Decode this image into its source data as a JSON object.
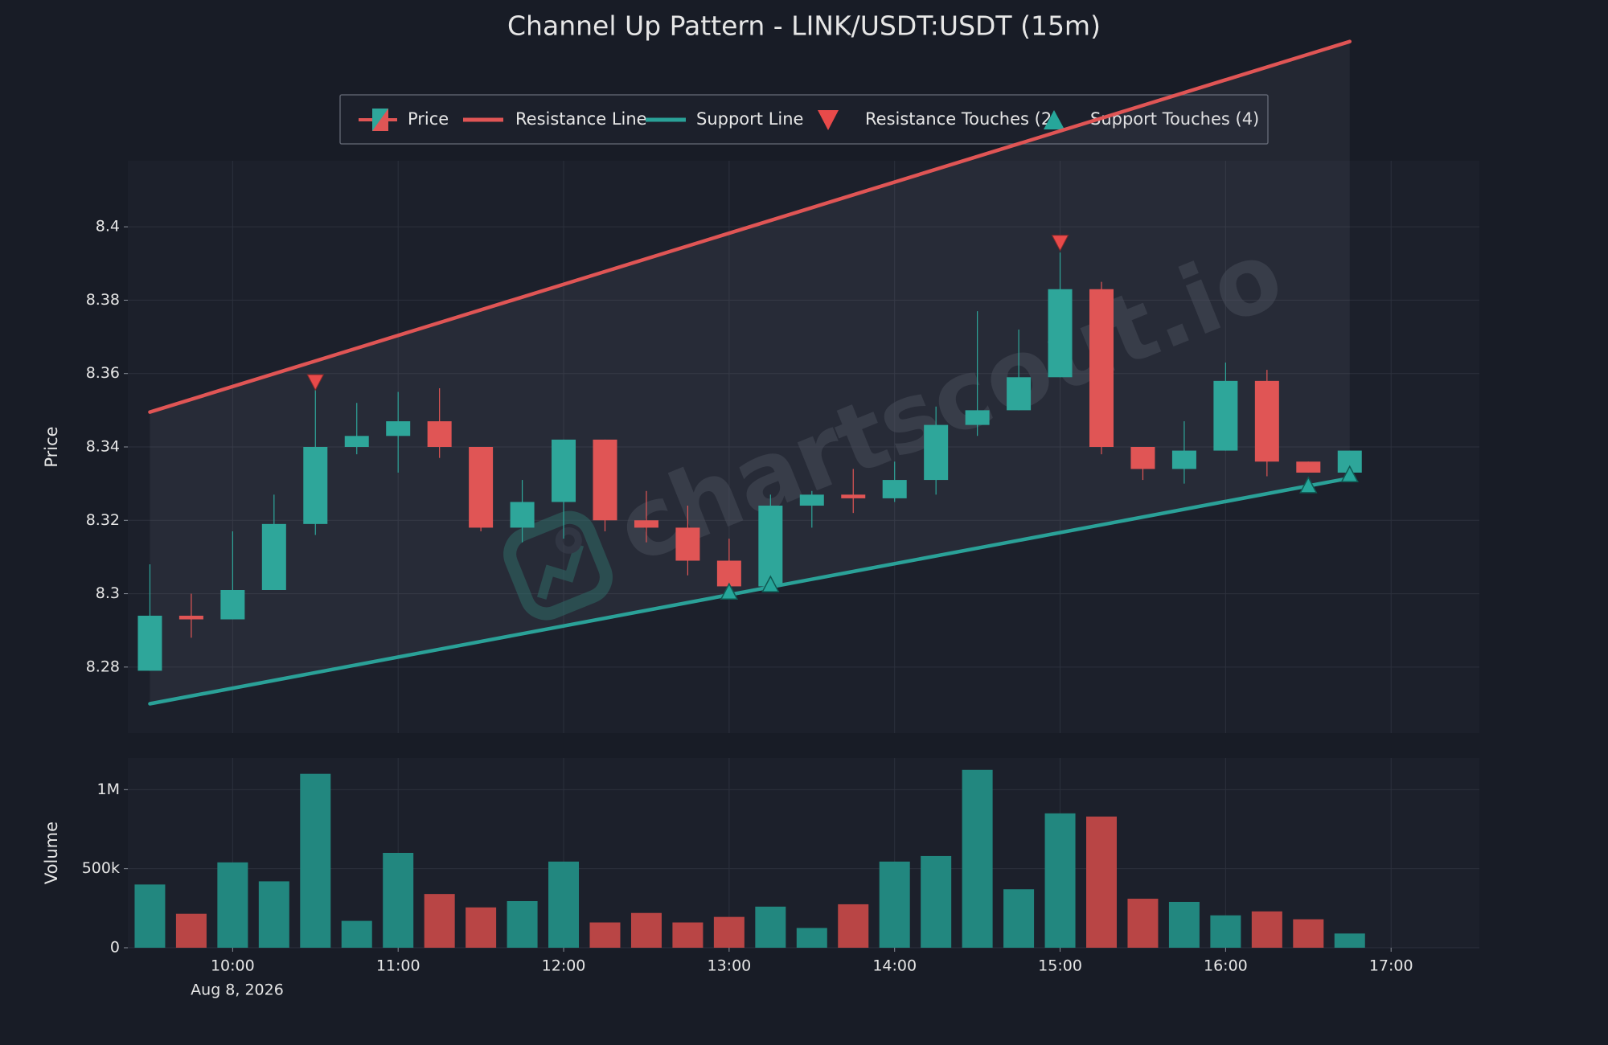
{
  "chart_data": {
    "type": "candlestick",
    "title": "Channel Up Pattern - LINK/USDT:USDT (15m)",
    "watermark": "chartscout.io",
    "legend": {
      "placement": "top-center",
      "items": [
        {
          "label": "Price",
          "icon": "candle-icon"
        },
        {
          "label": "Resistance Line",
          "icon": "line-icon",
          "color": "#e05555"
        },
        {
          "label": "Support Line",
          "icon": "line-icon",
          "color": "#2aa198"
        },
        {
          "label": "Resistance Touches (2)",
          "icon": "triangle-down-icon",
          "color": "#e84a4a"
        },
        {
          "label": "Support Touches (4)",
          "icon": "triangle-up-icon",
          "color": "#26a69a"
        }
      ]
    },
    "colors": {
      "up": "#2ea69a",
      "down": "#e05555",
      "up_volume": "#22877f",
      "down_volume": "#b94545",
      "resistance": "#e05555",
      "support": "#2aa198",
      "background": "#181c26",
      "panel": "#1c202b",
      "grid": "#2c313d",
      "text": "#e6e6e6"
    },
    "price_panel": {
      "ylabel": "Price",
      "ylim": [
        8.262,
        8.418
      ],
      "yticks": [
        8.28,
        8.3,
        8.32,
        8.34,
        8.36,
        8.38,
        8.4
      ],
      "ytick_labels": [
        "8.28",
        "8.3",
        "8.32",
        "8.34",
        "8.36",
        "8.38",
        "8.4"
      ]
    },
    "volume_panel": {
      "ylabel": "Volume",
      "ylim": [
        0,
        1200000
      ],
      "yticks": [
        0,
        500000,
        1000000
      ],
      "ytick_labels": [
        "0",
        "500k",
        "1M"
      ]
    },
    "x_axis": {
      "date_label": "Aug 8, 2026",
      "tick_times": [
        "10:00",
        "11:00",
        "12:00",
        "13:00",
        "14:00",
        "15:00",
        "16:00",
        "17:00"
      ],
      "xlim": [
        "09:22",
        "17:32"
      ]
    },
    "candles": [
      {
        "time": "09:30",
        "open": 8.279,
        "high": 8.308,
        "low": 8.279,
        "close": 8.294,
        "volume": 400000
      },
      {
        "time": "09:45",
        "open": 8.294,
        "high": 8.3,
        "low": 8.288,
        "close": 8.293,
        "volume": 215000
      },
      {
        "time": "10:00",
        "open": 8.293,
        "high": 8.317,
        "low": 8.293,
        "close": 8.301,
        "volume": 540000
      },
      {
        "time": "10:15",
        "open": 8.301,
        "high": 8.327,
        "low": 8.301,
        "close": 8.319,
        "volume": 420000
      },
      {
        "time": "10:30",
        "open": 8.319,
        "high": 8.356,
        "low": 8.316,
        "close": 8.34,
        "volume": 1100000
      },
      {
        "time": "10:45",
        "open": 8.34,
        "high": 8.352,
        "low": 8.338,
        "close": 8.343,
        "volume": 170000
      },
      {
        "time": "11:00",
        "open": 8.343,
        "high": 8.355,
        "low": 8.333,
        "close": 8.347,
        "volume": 600000
      },
      {
        "time": "11:15",
        "open": 8.347,
        "high": 8.356,
        "low": 8.337,
        "close": 8.34,
        "volume": 340000
      },
      {
        "time": "11:30",
        "open": 8.34,
        "high": 8.34,
        "low": 8.317,
        "close": 8.318,
        "volume": 255000
      },
      {
        "time": "11:45",
        "open": 8.318,
        "high": 8.331,
        "low": 8.314,
        "close": 8.325,
        "volume": 295000
      },
      {
        "time": "12:00",
        "open": 8.325,
        "high": 8.342,
        "low": 8.315,
        "close": 8.342,
        "volume": 545000
      },
      {
        "time": "12:15",
        "open": 8.342,
        "high": 8.342,
        "low": 8.317,
        "close": 8.32,
        "volume": 160000
      },
      {
        "time": "12:30",
        "open": 8.32,
        "high": 8.328,
        "low": 8.314,
        "close": 8.318,
        "volume": 220000
      },
      {
        "time": "12:45",
        "open": 8.318,
        "high": 8.324,
        "low": 8.305,
        "close": 8.309,
        "volume": 160000
      },
      {
        "time": "13:00",
        "open": 8.309,
        "high": 8.315,
        "low": 8.301,
        "close": 8.302,
        "volume": 195000
      },
      {
        "time": "13:15",
        "open": 8.302,
        "high": 8.327,
        "low": 8.302,
        "close": 8.324,
        "volume": 260000
      },
      {
        "time": "13:30",
        "open": 8.324,
        "high": 8.328,
        "low": 8.318,
        "close": 8.327,
        "volume": 125000
      },
      {
        "time": "13:45",
        "open": 8.327,
        "high": 8.334,
        "low": 8.322,
        "close": 8.326,
        "volume": 275000
      },
      {
        "time": "14:00",
        "open": 8.326,
        "high": 8.336,
        "low": 8.325,
        "close": 8.331,
        "volume": 545000
      },
      {
        "time": "14:15",
        "open": 8.331,
        "high": 8.351,
        "low": 8.327,
        "close": 8.346,
        "volume": 580000
      },
      {
        "time": "14:30",
        "open": 8.346,
        "high": 8.377,
        "low": 8.343,
        "close": 8.35,
        "volume": 1125000
      },
      {
        "time": "14:45",
        "open": 8.35,
        "high": 8.372,
        "low": 8.35,
        "close": 8.359,
        "volume": 370000
      },
      {
        "time": "15:00",
        "open": 8.359,
        "high": 8.393,
        "low": 8.359,
        "close": 8.383,
        "volume": 850000
      },
      {
        "time": "15:15",
        "open": 8.383,
        "high": 8.385,
        "low": 8.338,
        "close": 8.34,
        "volume": 830000
      },
      {
        "time": "15:30",
        "open": 8.34,
        "high": 8.34,
        "low": 8.331,
        "close": 8.334,
        "volume": 310000
      },
      {
        "time": "15:45",
        "open": 8.334,
        "high": 8.347,
        "low": 8.33,
        "close": 8.339,
        "volume": 290000
      },
      {
        "time": "16:00",
        "open": 8.339,
        "high": 8.363,
        "low": 8.339,
        "close": 8.358,
        "volume": 205000
      },
      {
        "time": "16:15",
        "open": 8.358,
        "high": 8.361,
        "low": 8.332,
        "close": 8.336,
        "volume": 230000
      },
      {
        "time": "16:30",
        "open": 8.336,
        "high": 8.336,
        "low": 8.333,
        "close": 8.333,
        "volume": 180000
      },
      {
        "time": "16:45",
        "open": 8.333,
        "high": 8.339,
        "low": 8.333,
        "close": 8.339,
        "volume": 90000
      }
    ],
    "resistance_line": {
      "start": {
        "time": "09:30",
        "price": 8.3495
      },
      "end": {
        "time": "16:45",
        "price": 8.4505
      }
    },
    "support_line": {
      "start": {
        "time": "09:30",
        "price": 8.27
      },
      "end": {
        "time": "16:45",
        "price": 8.3315
      }
    },
    "resistance_touches": [
      {
        "time": "10:30",
        "price": 8.3575
      },
      {
        "time": "15:00",
        "price": 8.3955
      }
    ],
    "support_touches": [
      {
        "time": "13:00",
        "price": 8.3005
      },
      {
        "time": "13:15",
        "price": 8.3025
      },
      {
        "time": "16:30",
        "price": 8.3295
      },
      {
        "time": "16:45",
        "price": 8.3325
      }
    ]
  }
}
